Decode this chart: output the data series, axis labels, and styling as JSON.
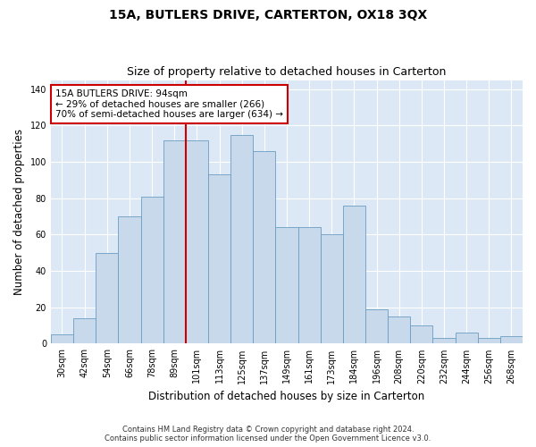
{
  "title": "15A, BUTLERS DRIVE, CARTERTON, OX18 3QX",
  "subtitle": "Size of property relative to detached houses in Carterton",
  "xlabel": "Distribution of detached houses by size in Carterton",
  "ylabel": "Number of detached properties",
  "bar_labels": [
    "30sqm",
    "42sqm",
    "54sqm",
    "66sqm",
    "78sqm",
    "89sqm",
    "101sqm",
    "113sqm",
    "125sqm",
    "137sqm",
    "149sqm",
    "161sqm",
    "173sqm",
    "184sqm",
    "196sqm",
    "208sqm",
    "220sqm",
    "232sqm",
    "244sqm",
    "256sqm",
    "268sqm"
  ],
  "bar_values": [
    5,
    14,
    50,
    70,
    81,
    112,
    112,
    93,
    115,
    106,
    64,
    64,
    60,
    76,
    19,
    15,
    10,
    3,
    6,
    3,
    4
  ],
  "bar_color": "#c8d9ec",
  "bar_edge_color": "#6b9dc2",
  "vline_x": 5.5,
  "vline_color": "#cc0000",
  "annotation_text": "15A BUTLERS DRIVE: 94sqm\n← 29% of detached houses are smaller (266)\n70% of semi-detached houses are larger (634) →",
  "annotation_box_facecolor": "#ffffff",
  "annotation_box_edgecolor": "#cc0000",
  "ylim": [
    0,
    145
  ],
  "yticks": [
    0,
    20,
    40,
    60,
    80,
    100,
    120,
    140
  ],
  "fig_bg_color": "#ffffff",
  "plot_bg_color": "#dce8f5",
  "grid_color": "#ffffff",
  "title_fontsize": 10,
  "subtitle_fontsize": 9,
  "label_fontsize": 8.5,
  "tick_fontsize": 7,
  "annotation_fontsize": 7.5,
  "footer_fontsize": 6,
  "footer_line1": "Contains HM Land Registry data © Crown copyright and database right 2024.",
  "footer_line2": "Contains public sector information licensed under the Open Government Licence v3.0."
}
